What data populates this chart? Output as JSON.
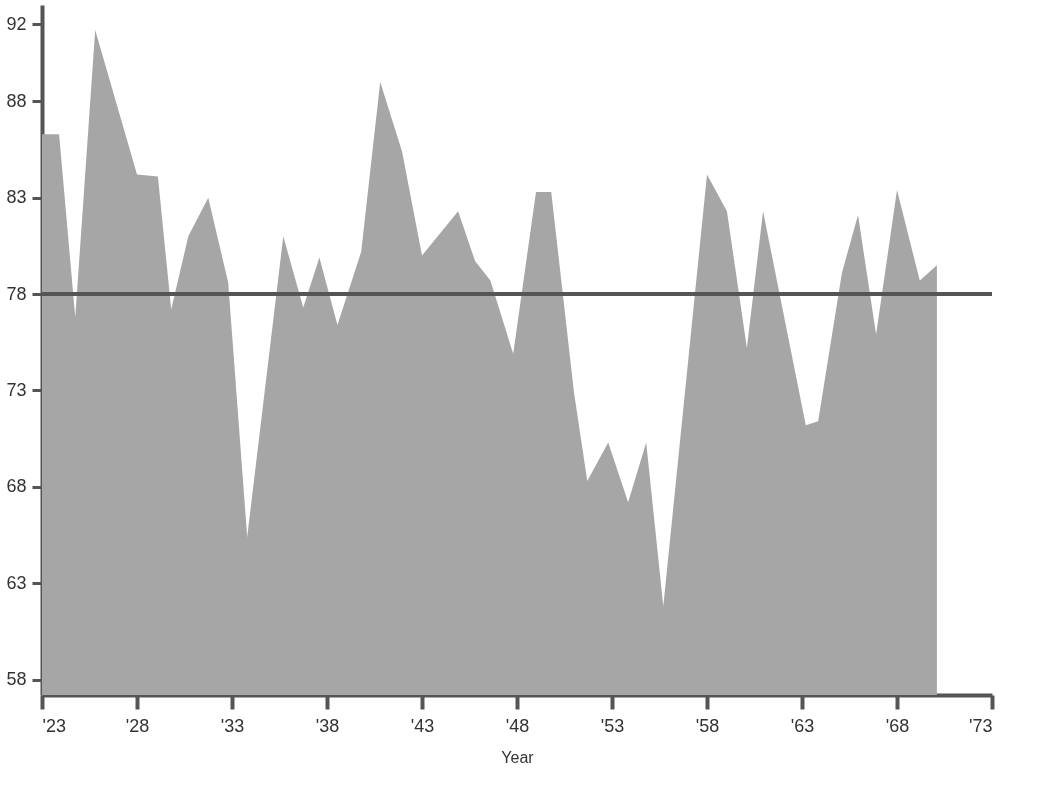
{
  "chart_data": {
    "type": "area",
    "xlabel": "Year",
    "x": [
      1923,
      1923.9,
      1924.75,
      1925.8,
      1928.0,
      1929.1,
      1929.8,
      1930.7,
      1931.75,
      1932.8,
      1933.8,
      1935.7,
      1936.75,
      1937.6,
      1938.55,
      1939.8,
      1940.8,
      1941.95,
      1943.0,
      1944.9,
      1945.8,
      1946.6,
      1947.8,
      1949.0,
      1949.8,
      1951.0,
      1951.7,
      1952.8,
      1953.85,
      1954.8,
      1955.7,
      1958.0,
      1959.05,
      1960.1,
      1960.95,
      1963.2,
      1963.85,
      1965.1,
      1965.95,
      1966.9,
      1968.0,
      1969.2,
      1970.1
    ],
    "series": [
      {
        "color": "#a6a6a6",
        "values": [
          86.3,
          86.3,
          76.8,
          91.7,
          84.2,
          84.1,
          77.2,
          81.0,
          83.0,
          78.6,
          65.4,
          81.0,
          77.3,
          79.9,
          76.4,
          80.2,
          89.0,
          85.4,
          80.0,
          82.3,
          79.7,
          78.7,
          74.9,
          83.3,
          83.3,
          72.9,
          68.3,
          70.3,
          67.2,
          70.3,
          61.8,
          84.2,
          82.3,
          75.2,
          82.3,
          71.2,
          71.4,
          79.1,
          82.1,
          75.9,
          83.4,
          78.7,
          79.5
        ]
      }
    ],
    "xlim": [
      1923,
      1973
    ],
    "xticks": [
      {
        "value": 1923,
        "label": "'23"
      },
      {
        "value": 1928,
        "label": "'28"
      },
      {
        "value": 1933,
        "label": "'33"
      },
      {
        "value": 1938,
        "label": "'38"
      },
      {
        "value": 1943,
        "label": "'43"
      },
      {
        "value": 1948,
        "label": "'48"
      },
      {
        "value": 1953,
        "label": "'53"
      },
      {
        "value": 1958,
        "label": "'58"
      },
      {
        "value": 1963,
        "label": "'63"
      },
      {
        "value": 1968,
        "label": "'68"
      },
      {
        "value": 1973,
        "label": "'73"
      }
    ],
    "ylim": [
      57.2,
      93
    ],
    "yticks": [
      58,
      63,
      68,
      73,
      78,
      83,
      88,
      92
    ],
    "ref_lines": [
      {
        "axis": "y",
        "value": 78,
        "color": "#555555"
      }
    ],
    "grid": false
  }
}
